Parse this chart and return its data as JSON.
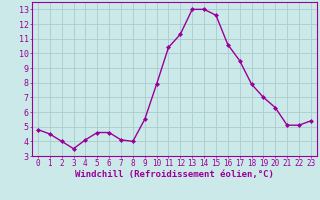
{
  "x": [
    0,
    1,
    2,
    3,
    4,
    5,
    6,
    7,
    8,
    9,
    10,
    11,
    12,
    13,
    14,
    15,
    16,
    17,
    18,
    19,
    20,
    21,
    22,
    23
  ],
  "y": [
    4.8,
    4.5,
    4.0,
    3.5,
    4.1,
    4.6,
    4.6,
    4.1,
    4.0,
    5.5,
    7.9,
    10.4,
    11.3,
    13.0,
    13.0,
    12.6,
    10.6,
    9.5,
    7.9,
    7.0,
    6.3,
    5.1,
    5.1,
    5.4
  ],
  "line_color": "#990099",
  "marker": "D",
  "marker_size": 2.0,
  "line_width": 1.0,
  "bg_color": "#cce9e9",
  "grid_color": "#aacccc",
  "xlabel": "Windchill (Refroidissement éolien,°C)",
  "ylabel_ticks": [
    3,
    4,
    5,
    6,
    7,
    8,
    9,
    10,
    11,
    12,
    13
  ],
  "xlim": [
    -0.5,
    23.5
  ],
  "ylim": [
    3,
    13.5
  ],
  "tick_color": "#990099",
  "label_color": "#990099",
  "xlabel_fontsize": 6.5,
  "ytick_fontsize": 6.0,
  "xtick_fontsize": 5.5
}
